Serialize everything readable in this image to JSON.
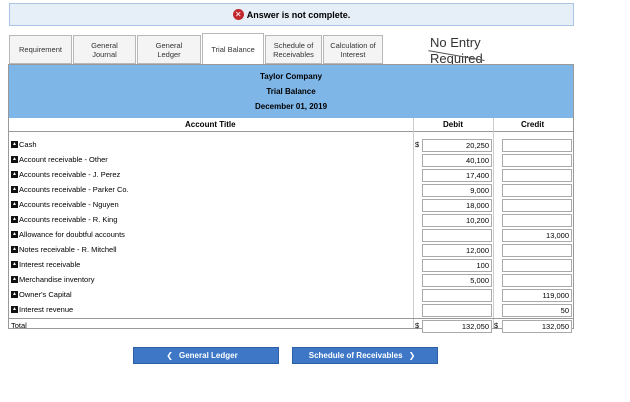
{
  "banner": {
    "text": "Answer is not complete."
  },
  "tabs": [
    {
      "label": "Requirement"
    },
    {
      "label": "General Journal"
    },
    {
      "label": "General Ledger"
    },
    {
      "label": "Trial Balance"
    },
    {
      "label": "Schedule of Receivables"
    },
    {
      "label": "Calculation of Interest"
    }
  ],
  "noentry": {
    "line1": "No Entry",
    "line2": "Required"
  },
  "sheet": {
    "company": "Taylor Company",
    "report": "Trial Balance",
    "date": "December 01, 2019",
    "col_title": "Account Title",
    "col_debit": "Debit",
    "col_credit": "Credit",
    "dollar": "$",
    "rows": [
      {
        "title": "Cash",
        "debit": "20,250",
        "credit": "",
        "dollar": "$"
      },
      {
        "title": "Account receivable - Other",
        "debit": "40,100",
        "credit": ""
      },
      {
        "title": "Accounts receivable - J. Perez",
        "debit": "17,400",
        "credit": ""
      },
      {
        "title": "Accounts receivable - Parker Co.",
        "debit": "9,000",
        "credit": ""
      },
      {
        "title": "Accounts receivable - Nguyen",
        "debit": "18,000",
        "credit": ""
      },
      {
        "title": "Accounts receivable - R. King",
        "debit": "10,200",
        "credit": ""
      },
      {
        "title": "Allowance for doubtful accounts",
        "debit": "",
        "credit": "13,000"
      },
      {
        "title": "Notes receivable - R. Mitchell",
        "debit": "12,000",
        "credit": ""
      },
      {
        "title": "Interest receivable",
        "debit": "100",
        "credit": ""
      },
      {
        "title": "Merchandise inventory",
        "debit": "5,000",
        "credit": ""
      },
      {
        "title": "Owner's Capital",
        "debit": "",
        "credit": "119,000"
      },
      {
        "title": "Interest revenue",
        "debit": "",
        "credit": "50"
      }
    ],
    "total": {
      "title": "Total",
      "debit": "132,050",
      "credit": "132,050"
    }
  },
  "nav": {
    "prev_label": "General Ledger",
    "next_label": "Schedule of Receivables"
  }
}
